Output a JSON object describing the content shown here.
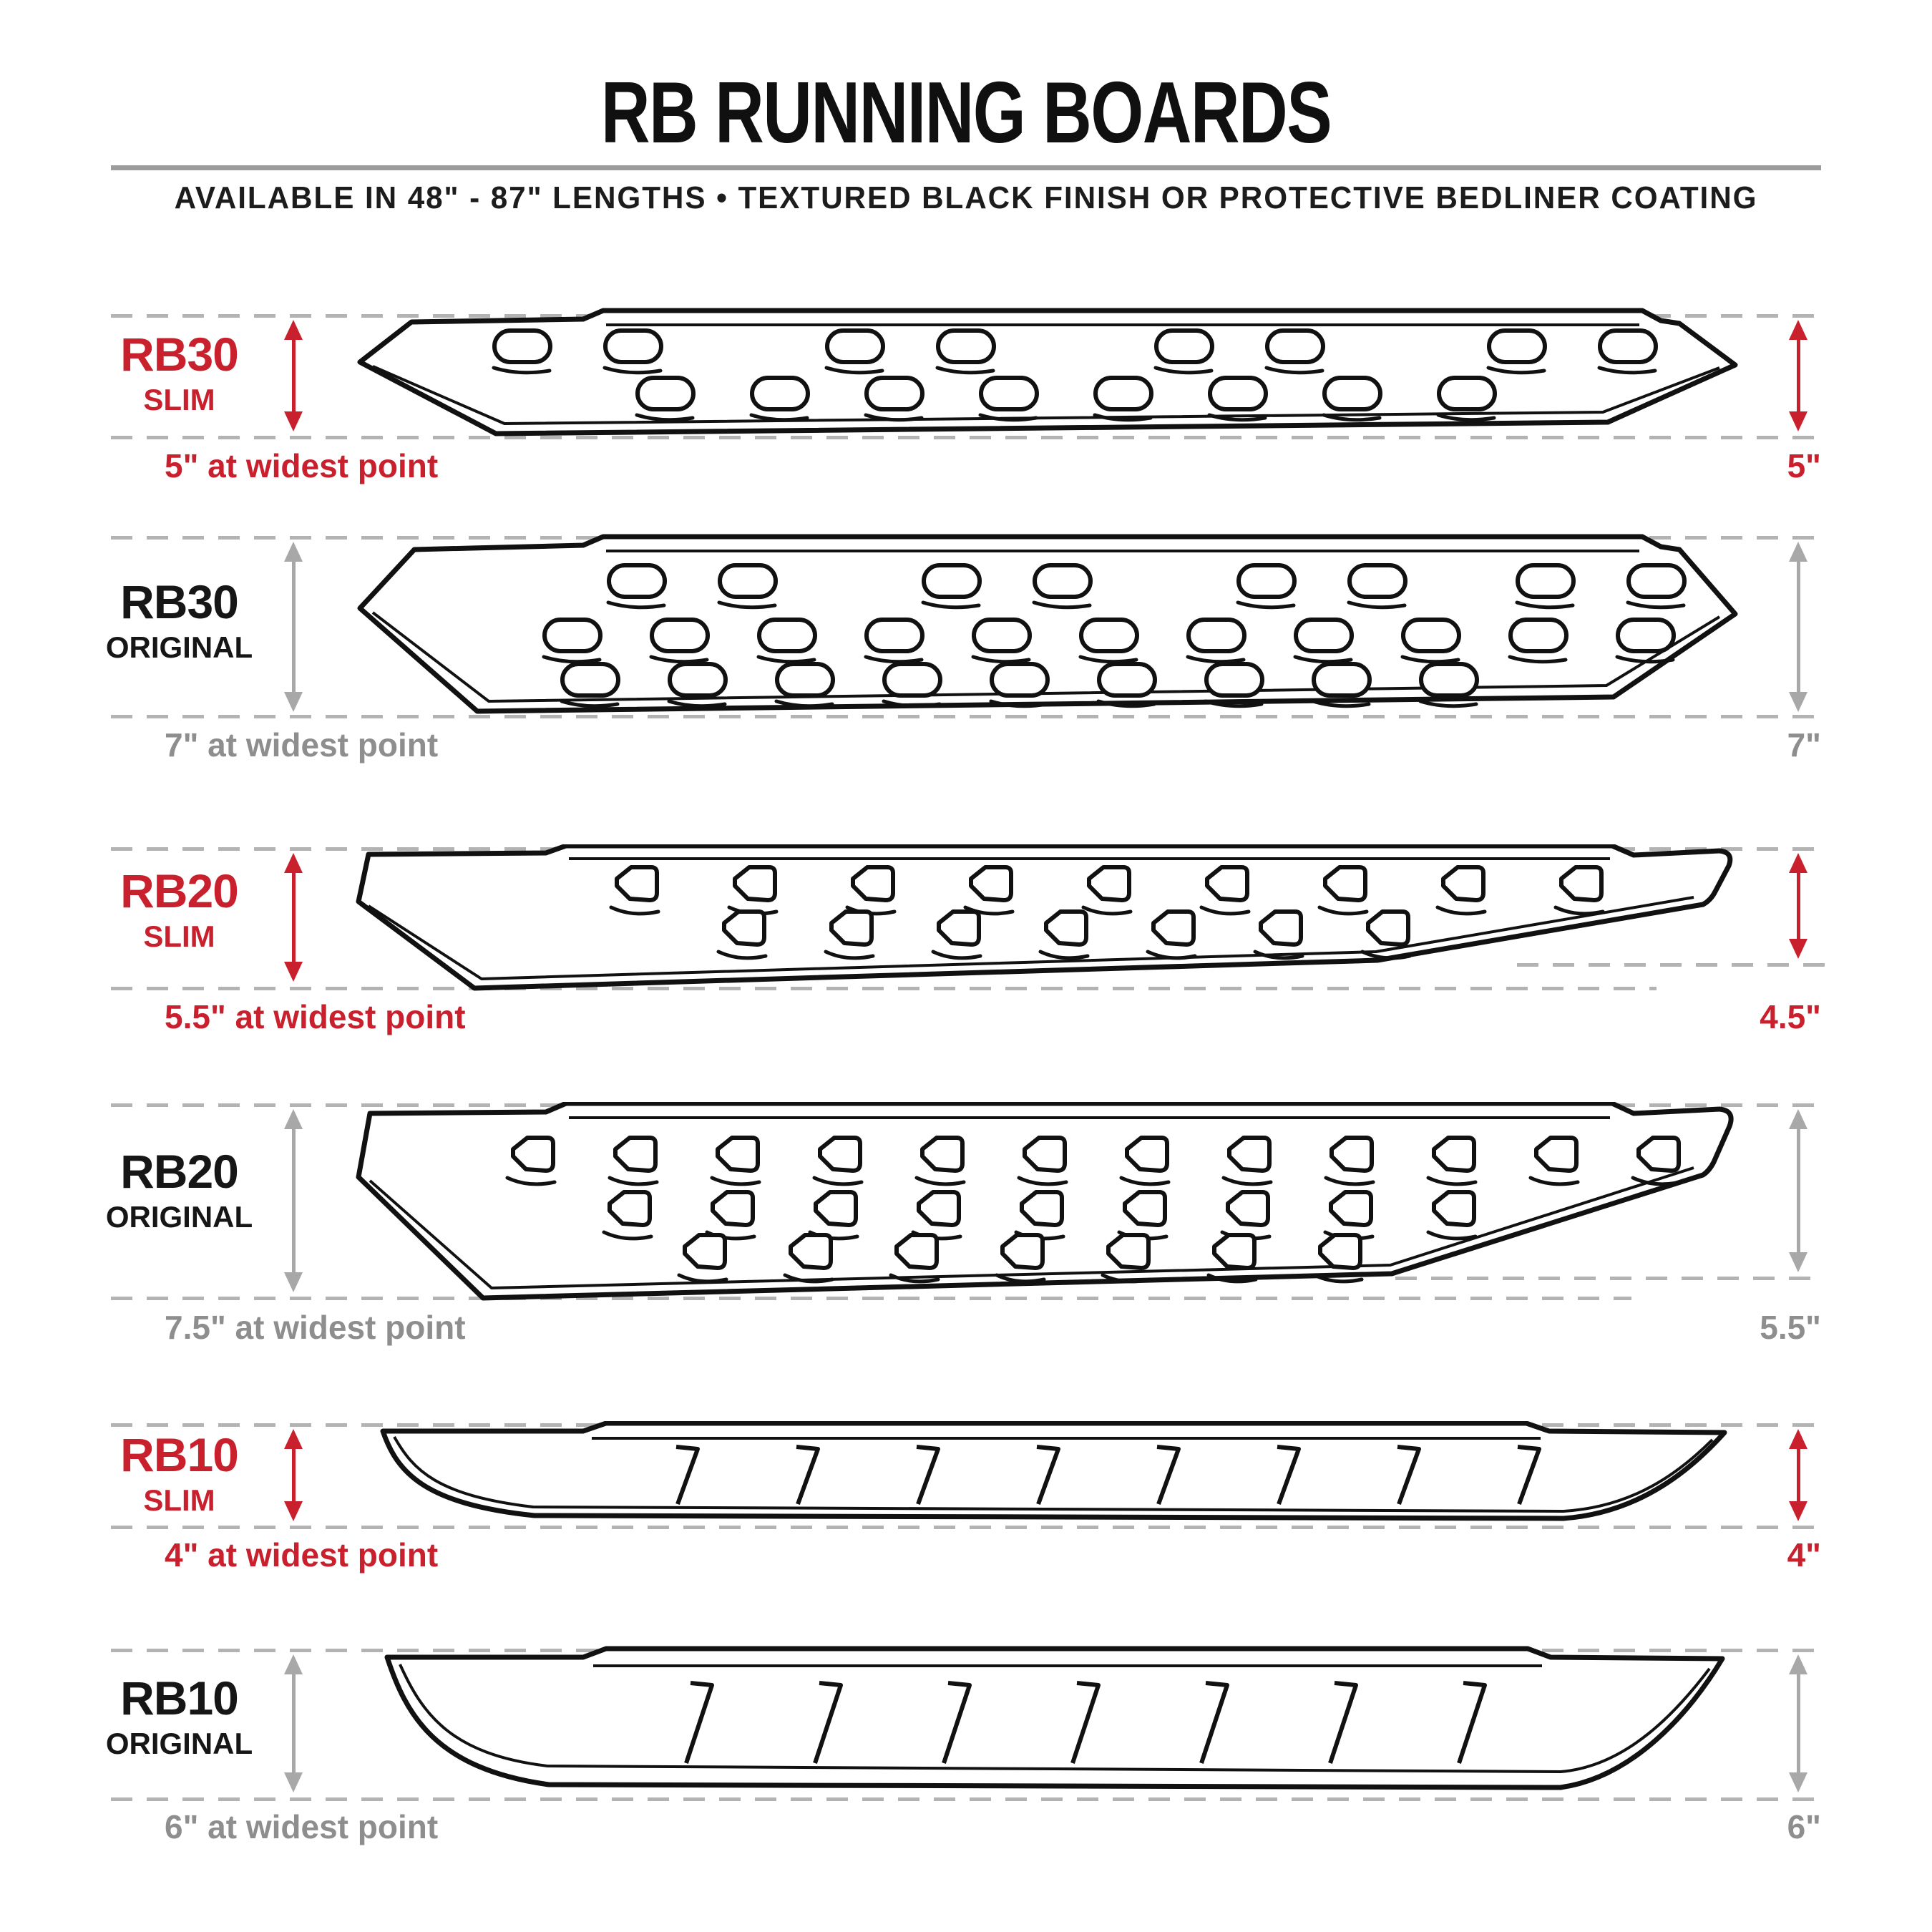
{
  "header": {
    "title": "RB RUNNING BOARDS",
    "subtitle": "AVAILABLE IN 48\" - 87\" LENGTHS  •  TEXTURED BLACK FINISH OR PROTECTIVE BEDLINER COATING"
  },
  "colors": {
    "accent_red": "#c9202e",
    "caption_gray": "#8e8e8e",
    "arrow_gray": "#a8a8a8",
    "label_black": "#161616",
    "line_black": "#111111",
    "dash_gray": "#b3b3b3"
  },
  "rows": [
    {
      "id": "rb30-slim",
      "model": "RB30",
      "variant": "SLIM",
      "accent": "red",
      "width_label": "5\" at widest point",
      "height_label": "5\""
    },
    {
      "id": "rb30-original",
      "model": "RB30",
      "variant": "ORIGINAL",
      "accent": "black",
      "width_label": "7\" at widest point",
      "height_label": "7\""
    },
    {
      "id": "rb20-slim",
      "model": "RB20",
      "variant": "SLIM",
      "accent": "red",
      "width_label": "5.5\" at widest point",
      "height_label": "4.5\""
    },
    {
      "id": "rb20-original",
      "model": "RB20",
      "variant": "ORIGINAL",
      "accent": "black",
      "width_label": "7.5\" at widest point",
      "height_label": "5.5\""
    },
    {
      "id": "rb10-slim",
      "model": "RB10",
      "variant": "SLIM",
      "accent": "red",
      "width_label": "4\" at widest point",
      "height_label": "4\""
    },
    {
      "id": "rb10-original",
      "model": "RB10",
      "variant": "ORIGINAL",
      "accent": "black",
      "width_label": "6\" at widest point",
      "height_label": "6\""
    }
  ]
}
